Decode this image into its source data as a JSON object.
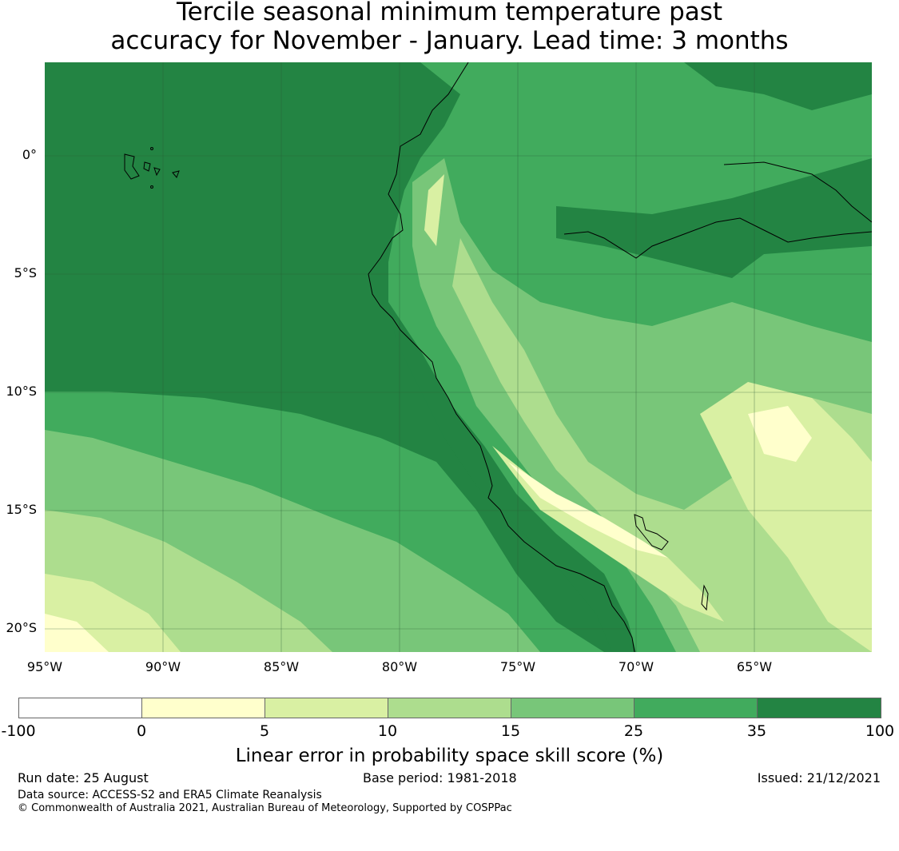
{
  "title": {
    "line1": "Tercile seasonal minimum temperature past",
    "line2": "accuracy for November - January. Lead time: 3 months"
  },
  "map": {
    "lat_labels": [
      "0°",
      "5°S",
      "10°S",
      "15°S",
      "20°S"
    ],
    "lon_labels": [
      "95°W",
      "90°W",
      "85°W",
      "80°W",
      "75°W",
      "70°W",
      "65°W"
    ],
    "colors": {
      "dark": "#238443",
      "mid_dark": "#41ab5d",
      "mid": "#78c679",
      "light": "#addd8e",
      "pale": "#d9f0a3",
      "cream": "#ffffcc"
    }
  },
  "colorbar": {
    "ticks": [
      "-100",
      "0",
      "5",
      "10",
      "15",
      "25",
      "35",
      "100"
    ],
    "colors": [
      "#ffffff",
      "#ffffcc",
      "#d9f0a3",
      "#addd8e",
      "#78c679",
      "#41ab5d",
      "#238443"
    ],
    "label": "Linear error in probability space skill score (%)"
  },
  "footer": {
    "run_date": "Run date: 25 August",
    "base_period": "Base period: 1981-2018",
    "issued": "Issued: 21/12/2021",
    "data_source": "Data source: ACCESS-S2 and ERA5 Climate Reanalysis",
    "copyright": "© Commonwealth of Australia 2021, Australian Bureau of Meteorology, Supported by COSPPac"
  }
}
